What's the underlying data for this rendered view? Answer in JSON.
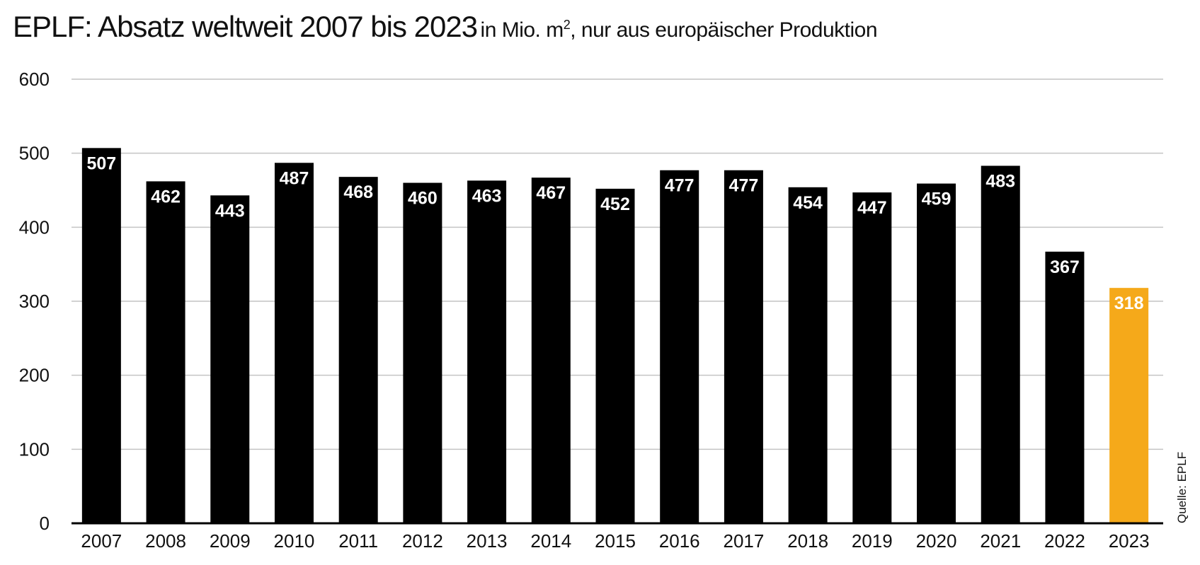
{
  "chart_data": {
    "type": "bar",
    "title": "EPLF: Absatz weltweit 2007 bis 2023",
    "subtitle_pre": "in Mio. m",
    "subtitle_sup": "2",
    "subtitle_post": ", nur aus europäischer Produktion",
    "source": "Quelle: EPLF",
    "categories": [
      "2007",
      "2008",
      "2009",
      "2010",
      "2011",
      "2012",
      "2013",
      "2014",
      "2015",
      "2016",
      "2017",
      "2018",
      "2019",
      "2020",
      "2021",
      "2022",
      "2023"
    ],
    "values": [
      507,
      462,
      443,
      487,
      468,
      460,
      463,
      467,
      452,
      477,
      477,
      454,
      447,
      459,
      483,
      367,
      318
    ],
    "ylim": [
      0,
      600
    ],
    "yticks": [
      0,
      100,
      200,
      300,
      400,
      500,
      600
    ],
    "grid": true,
    "colors": {
      "default": "#000000",
      "highlight": "#f5a91a",
      "grid": "#c4c4c4"
    },
    "highlight_category": "2023"
  }
}
